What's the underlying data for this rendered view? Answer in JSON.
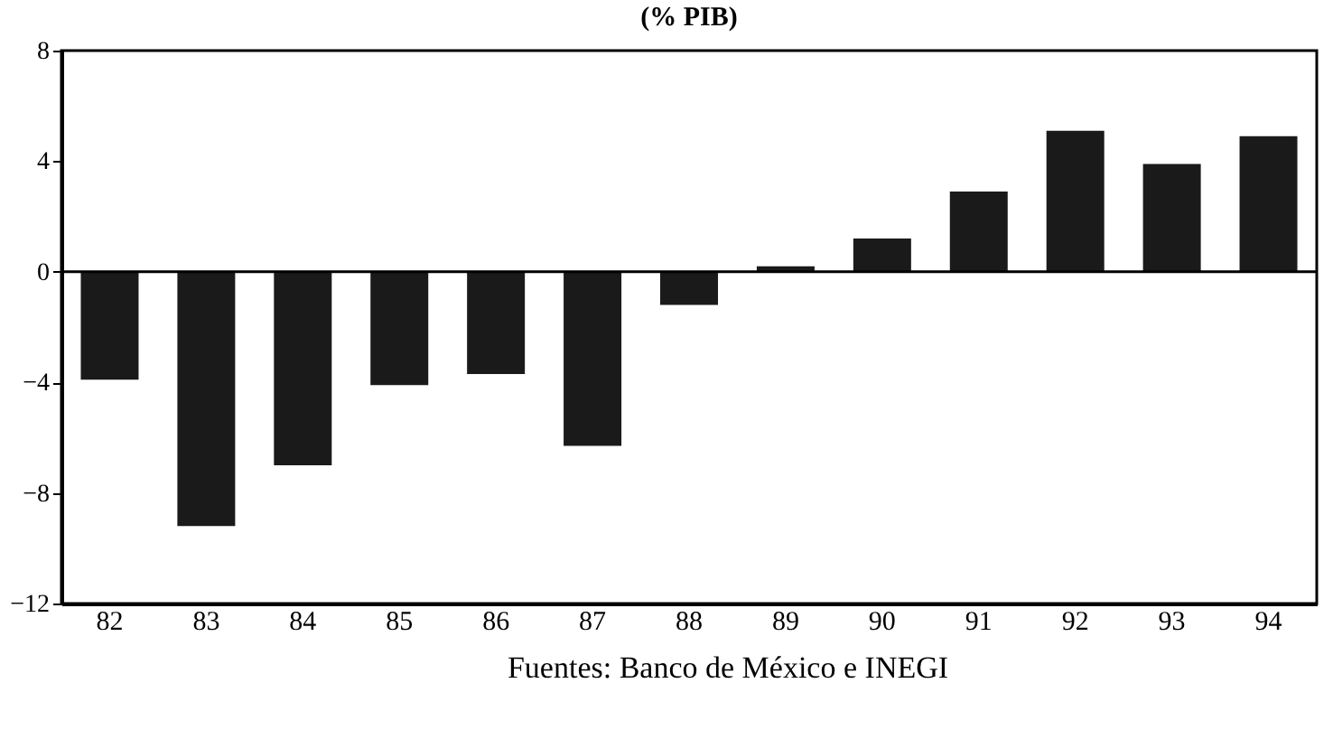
{
  "chart_data": {
    "type": "bar",
    "title": "(% PIB)",
    "categories": [
      "82",
      "83",
      "84",
      "85",
      "86",
      "87",
      "88",
      "89",
      "90",
      "91",
      "92",
      "93",
      "94"
    ],
    "values": [
      -3.9,
      -9.2,
      -7.0,
      -4.1,
      -3.7,
      -6.3,
      -1.2,
      0.2,
      1.2,
      2.9,
      5.1,
      3.9,
      4.9
    ],
    "color": "#1a1a1a",
    "ylim": [
      -12,
      8
    ],
    "yticks": [
      -12,
      -8,
      -4,
      0,
      4,
      8
    ],
    "grid": false,
    "ref_lines": [
      {
        "axis": "y",
        "value": 0
      }
    ],
    "annotations": [
      "Fuentes: Banco de México e INEGI"
    ]
  }
}
